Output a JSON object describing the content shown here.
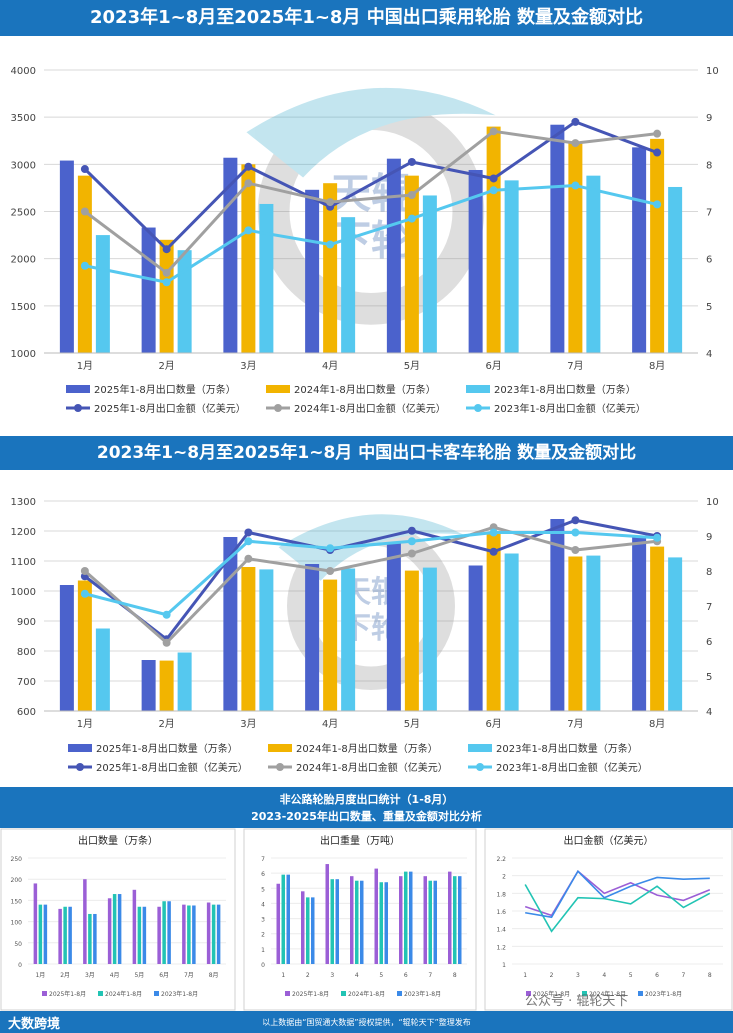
{
  "section1": {
    "title": "2023年1~8月至2025年1~8月  中国出口乘用轮胎  数量及金额对比",
    "chart_data": {
      "type": "bar",
      "categories": [
        "1月",
        "2月",
        "3月",
        "4月",
        "5月",
        "6月",
        "7月",
        "8月"
      ],
      "ylim": [
        1000,
        4000
      ],
      "yticks": [
        1000,
        1500,
        2000,
        2500,
        3000,
        3500,
        4000
      ],
      "y2lim": [
        4,
        10
      ],
      "y2ticks": [
        4,
        5,
        6,
        7,
        8,
        9,
        10
      ],
      "series": [
        {
          "name": "2025年1-8月出口数量（万条）",
          "kind": "bar",
          "color": "#4b62cc",
          "values": [
            3040,
            2330,
            3070,
            2730,
            3060,
            2940,
            3420,
            3180
          ]
        },
        {
          "name": "2024年1-8月出口数量（万条）",
          "kind": "bar",
          "color": "#f2b400",
          "values": [
            2880,
            2200,
            3000,
            2800,
            2880,
            3400,
            3240,
            3270
          ]
        },
        {
          "name": "2023年1-8月出口数量（万条）",
          "kind": "bar",
          "color": "#55c8ef",
          "values": [
            2250,
            2090,
            2580,
            2440,
            2670,
            2830,
            2880,
            2760
          ]
        },
        {
          "name": "2025年1-8月出口金额（亿美元）",
          "kind": "line",
          "color": "#4555b5",
          "values": [
            7.9,
            6.2,
            7.95,
            7.1,
            8.05,
            7.7,
            8.9,
            8.25
          ]
        },
        {
          "name": "2024年1-8月出口金额（亿美元）",
          "kind": "line",
          "color": "#a0a0a0",
          "values": [
            7.0,
            5.7,
            7.6,
            7.2,
            7.35,
            8.7,
            8.45,
            8.65
          ]
        },
        {
          "name": "2023年1-8月出口金额（亿美元）",
          "kind": "line",
          "color": "#55c8ef",
          "values": [
            5.85,
            5.5,
            6.6,
            6.3,
            6.85,
            7.45,
            7.55,
            7.15
          ]
        }
      ]
    }
  },
  "section2": {
    "title": "2023年1~8月至2025年1~8月  中国出口卡客车轮胎  数量及金额对比",
    "chart_data": {
      "type": "bar",
      "categories": [
        "1月",
        "2月",
        "3月",
        "4月",
        "5月",
        "6月",
        "7月",
        "8月"
      ],
      "ylim": [
        600,
        1300
      ],
      "yticks": [
        600,
        700,
        800,
        900,
        1000,
        1100,
        1200,
        1300
      ],
      "y2lim": [
        4,
        10
      ],
      "y2ticks": [
        4,
        5,
        6,
        7,
        8,
        9,
        10
      ],
      "series": [
        {
          "name": "2025年1-8月出口数量（万条）",
          "kind": "bar",
          "color": "#4b62cc",
          "values": [
            1020,
            770,
            1180,
            1090,
            1160,
            1085,
            1240,
            1185
          ]
        },
        {
          "name": "2024年1-8月出口数量（万条）",
          "kind": "bar",
          "color": "#f2b400",
          "values": [
            1035,
            768,
            1080,
            1038,
            1068,
            1190,
            1115,
            1148
          ]
        },
        {
          "name": "2023年1-8月出口数量（万条）",
          "kind": "bar",
          "color": "#55c8ef",
          "values": [
            875,
            795,
            1072,
            1075,
            1078,
            1125,
            1118,
            1112
          ]
        },
        {
          "name": "2025年1-8月出口金额（亿美元）",
          "kind": "line",
          "color": "#4555b5",
          "values": [
            7.85,
            6.05,
            9.1,
            8.6,
            9.15,
            8.55,
            9.45,
            9.0
          ]
        },
        {
          "name": "2024年1-8月出口金额（亿美元）",
          "kind": "line",
          "color": "#a0a0a0",
          "values": [
            8.0,
            5.95,
            8.35,
            8.0,
            8.5,
            9.25,
            8.6,
            8.85
          ]
        },
        {
          "name": "2023年1-8月出口金额（亿美元）",
          "kind": "line",
          "color": "#55c8ef",
          "values": [
            7.35,
            6.75,
            8.85,
            8.65,
            8.85,
            9.1,
            9.1,
            8.95
          ]
        }
      ]
    }
  },
  "section3": {
    "title": "非公路轮胎月度出口统计（1-8月）",
    "subtitle": "2023-2025年出口数量、重量及金额对比分析",
    "charts": [
      {
        "title": "出口数量（万条）",
        "type": "bar",
        "categories": [
          "1月",
          "2月",
          "3月",
          "4月",
          "5月",
          "6月",
          "7月",
          "8月"
        ],
        "ylim": [
          0,
          250
        ],
        "yticks": [
          0,
          50,
          100,
          150,
          200,
          250
        ],
        "series": [
          {
            "name": "2025年1-8月",
            "color": "#9b5fd6",
            "values": [
              190,
              130,
              200,
              155,
              175,
              135,
              140,
              145
            ]
          },
          {
            "name": "2024年1-8月",
            "color": "#22c4b4",
            "values": [
              140,
              135,
              118,
              165,
              135,
              148,
              138,
              140
            ]
          },
          {
            "name": "2023年1-8月",
            "color": "#3b8ae8",
            "values": [
              140,
              135,
              118,
              165,
              135,
              148,
              138,
              140
            ]
          }
        ]
      },
      {
        "title": "出口重量（万吨）",
        "type": "bar",
        "categories": [
          "1",
          "2",
          "3",
          "4",
          "5",
          "6",
          "7",
          "8"
        ],
        "ylim": [
          0,
          7
        ],
        "yticks": [
          0,
          1,
          2,
          3,
          4,
          5,
          6,
          7
        ],
        "series": [
          {
            "name": "2025年1-8月",
            "color": "#9b5fd6",
            "values": [
              5.3,
              4.8,
              6.6,
              5.8,
              6.3,
              5.8,
              5.8,
              6.1
            ]
          },
          {
            "name": "2024年1-8月",
            "color": "#22c4b4",
            "values": [
              5.9,
              4.4,
              5.6,
              5.5,
              5.4,
              6.1,
              5.5,
              5.8
            ]
          },
          {
            "name": "2023年1-8月",
            "color": "#3b8ae8",
            "values": [
              5.9,
              4.4,
              5.6,
              5.5,
              5.4,
              6.1,
              5.5,
              5.8
            ]
          }
        ]
      },
      {
        "title": "出口金额（亿美元）",
        "type": "line",
        "categories": [
          "1",
          "2",
          "3",
          "4",
          "5",
          "6",
          "7",
          "8"
        ],
        "ylim": [
          1,
          2.2
        ],
        "yticks": [
          1,
          1.2,
          1.4,
          1.6,
          1.8,
          2,
          2.2
        ],
        "series": [
          {
            "name": "2025年1-8月",
            "color": "#9b5fd6",
            "values": [
              1.65,
              1.55,
              2.05,
              1.8,
              1.92,
              1.78,
              1.72,
              1.84
            ]
          },
          {
            "name": "2024年1-8月",
            "color": "#22c4b4",
            "values": [
              1.9,
              1.37,
              1.75,
              1.74,
              1.68,
              1.88,
              1.64,
              1.8
            ]
          },
          {
            "name": "2023年1-8月",
            "color": "#3b8ae8",
            "values": [
              1.58,
              1.53,
              2.05,
              1.75,
              1.88,
              1.98,
              1.96,
              1.97
            ]
          }
        ]
      }
    ]
  },
  "watermark_text": "天辊下轮",
  "wechat_watermark": "公众号 · 辊轮天下",
  "footer": {
    "brand": "大数跨境",
    "note": "以上数据由“国贸通大数据”授权提供，“辊轮天下”整理发布"
  }
}
